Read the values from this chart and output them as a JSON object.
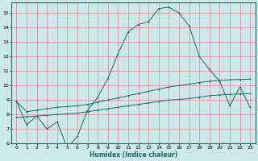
{
  "title": "",
  "xlabel": "Humidex (Indice chaleur)",
  "bg_color": "#cce8e8",
  "line_color": "#1a6b6b",
  "grid_color": "#e88888",
  "xlim": [
    -0.5,
    23.5
  ],
  "ylim": [
    6,
    15.7
  ],
  "yticks": [
    6,
    7,
    8,
    9,
    10,
    11,
    12,
    13,
    14,
    15
  ],
  "xticks": [
    0,
    1,
    2,
    3,
    4,
    5,
    6,
    7,
    8,
    9,
    10,
    11,
    12,
    13,
    14,
    15,
    16,
    17,
    18,
    19,
    20,
    21,
    22,
    23
  ],
  "series1_x": [
    0,
    1,
    2,
    3,
    4,
    5,
    6,
    7,
    8,
    9,
    10,
    11,
    12,
    13,
    14,
    15,
    16,
    17,
    18,
    19,
    20,
    21,
    22,
    23
  ],
  "series1_y": [
    8.9,
    7.3,
    7.9,
    7.0,
    7.5,
    5.7,
    6.5,
    8.3,
    9.2,
    10.5,
    12.2,
    13.7,
    14.2,
    14.4,
    15.3,
    15.4,
    15.0,
    14.1,
    12.0,
    11.1,
    10.3,
    8.6,
    9.9,
    8.5
  ],
  "series2_x": [
    0,
    1,
    2,
    3,
    4,
    5,
    6,
    7,
    8,
    9,
    10,
    11,
    12,
    13,
    14,
    15,
    16,
    17,
    18,
    19,
    20,
    21,
    22,
    23
  ],
  "series2_y": [
    8.9,
    8.2,
    8.3,
    8.4,
    8.5,
    8.55,
    8.6,
    8.7,
    8.85,
    9.0,
    9.15,
    9.3,
    9.45,
    9.6,
    9.75,
    9.9,
    10.0,
    10.1,
    10.2,
    10.3,
    10.35,
    10.4,
    10.42,
    10.44
  ],
  "series3_x": [
    0,
    1,
    2,
    3,
    4,
    5,
    6,
    7,
    8,
    9,
    10,
    11,
    12,
    13,
    14,
    15,
    16,
    17,
    18,
    19,
    20,
    21,
    22,
    23
  ],
  "series3_y": [
    7.8,
    7.85,
    7.9,
    7.95,
    8.0,
    8.05,
    8.1,
    8.2,
    8.3,
    8.4,
    8.5,
    8.6,
    8.7,
    8.8,
    8.9,
    9.0,
    9.05,
    9.1,
    9.2,
    9.3,
    9.35,
    9.4,
    9.42,
    9.44
  ]
}
